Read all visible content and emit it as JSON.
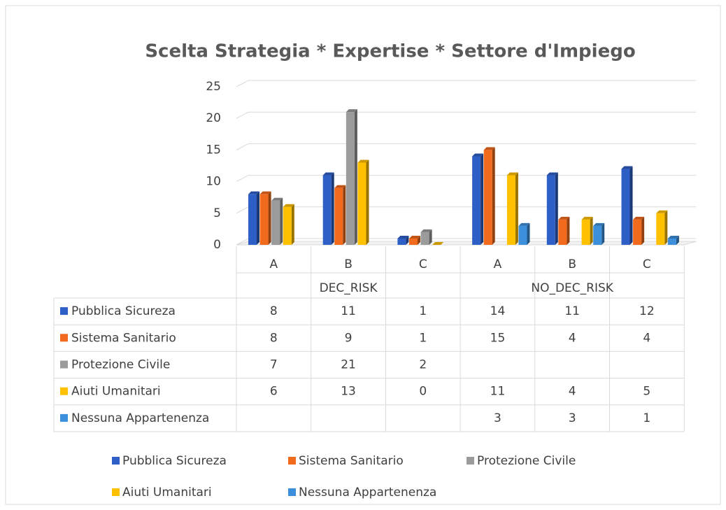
{
  "chart_data": {
    "type": "bar3d",
    "title": "Scelta Strategia * Expertise * Settore d'Impiego",
    "categories": [
      "A",
      "B",
      "C",
      "A",
      "B",
      "C"
    ],
    "groups": [
      "DEC_RISK",
      "NO_DEC_RISK"
    ],
    "series": [
      {
        "name": "Pubblica Sicureza",
        "color": "#2e5fc6",
        "values": [
          8,
          11,
          1,
          14,
          11,
          12
        ]
      },
      {
        "name": "Sistema Sanitario",
        "color": "#f26a1b",
        "values": [
          8,
          9,
          1,
          15,
          4,
          4
        ]
      },
      {
        "name": "Protezione Civile",
        "color": "#9b9b9b",
        "values": [
          7,
          21,
          2,
          null,
          null,
          null
        ]
      },
      {
        "name": "Aiuti Umanitari",
        "color": "#ffc000",
        "values": [
          6,
          13,
          0,
          11,
          4,
          5
        ]
      },
      {
        "name": "Nessuna Appartenenza",
        "color": "#3b8fdb",
        "values": [
          null,
          null,
          null,
          3,
          3,
          1
        ]
      }
    ],
    "ylim": [
      0,
      25
    ],
    "yticks": [
      0,
      5,
      10,
      15,
      20,
      25
    ],
    "grid": true,
    "data_table": true
  }
}
